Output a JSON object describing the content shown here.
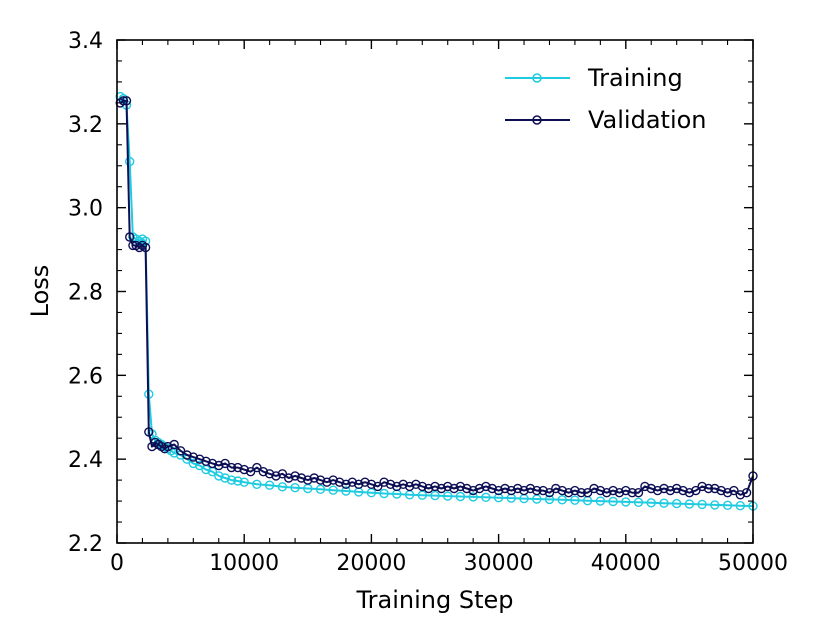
{
  "chart_data": {
    "type": "line",
    "title": "",
    "xlabel": "Training Step",
    "ylabel": "Loss",
    "xlim": [
      0,
      50000
    ],
    "ylim": [
      2.2,
      3.4
    ],
    "xticks": [
      0,
      10000,
      20000,
      30000,
      40000,
      50000
    ],
    "xtick_labels": [
      "0",
      "10000",
      "20000",
      "30000",
      "40000",
      "50000"
    ],
    "yticks": [
      2.2,
      2.4,
      2.6,
      2.8,
      3.0,
      3.2,
      3.4
    ],
    "ytick_labels": [
      "2.2",
      "2.4",
      "2.6",
      "2.8",
      "3.0",
      "3.2",
      "3.4"
    ],
    "grid": false,
    "legend_position": "top-right",
    "series": [
      {
        "name": "Training",
        "color": "#1ecbe1",
        "marker": "open-circle",
        "x": [
          250,
          500,
          750,
          1000,
          1250,
          1500,
          1750,
          2000,
          2250,
          2500,
          2750,
          3000,
          3250,
          3500,
          3750,
          4000,
          4250,
          4500,
          5000,
          5500,
          6000,
          6500,
          7000,
          7500,
          8000,
          8500,
          9000,
          9500,
          10000,
          11000,
          12000,
          13000,
          14000,
          15000,
          16000,
          17000,
          18000,
          19000,
          20000,
          21000,
          22000,
          23000,
          24000,
          25000,
          26000,
          27000,
          28000,
          29000,
          30000,
          31000,
          32000,
          33000,
          34000,
          35000,
          36000,
          37000,
          38000,
          39000,
          40000,
          41000,
          42000,
          43000,
          44000,
          45000,
          46000,
          47000,
          48000,
          49000,
          50000
        ],
        "y": [
          3.265,
          3.26,
          3.245,
          3.11,
          2.93,
          2.925,
          2.92,
          2.925,
          2.92,
          2.555,
          2.46,
          2.445,
          2.44,
          2.435,
          2.43,
          2.425,
          2.42,
          2.415,
          2.41,
          2.4,
          2.39,
          2.385,
          2.375,
          2.37,
          2.36,
          2.355,
          2.35,
          2.348,
          2.345,
          2.34,
          2.338,
          2.334,
          2.332,
          2.33,
          2.328,
          2.326,
          2.324,
          2.322,
          2.32,
          2.318,
          2.317,
          2.315,
          2.314,
          2.313,
          2.312,
          2.311,
          2.31,
          2.309,
          2.308,
          2.307,
          2.306,
          2.305,
          2.304,
          2.303,
          2.302,
          2.301,
          2.3,
          2.299,
          2.298,
          2.297,
          2.296,
          2.295,
          2.294,
          2.293,
          2.292,
          2.291,
          2.29,
          2.289,
          2.288
        ]
      },
      {
        "name": "Validation",
        "color": "#0d0f55",
        "marker": "open-circle",
        "x": [
          250,
          500,
          750,
          1000,
          1250,
          1500,
          1750,
          2000,
          2250,
          2500,
          2750,
          3000,
          3250,
          3500,
          3750,
          4000,
          4500,
          5000,
          5500,
          6000,
          6500,
          7000,
          7500,
          8000,
          8500,
          9000,
          9500,
          10000,
          10500,
          11000,
          11500,
          12000,
          12500,
          13000,
          13500,
          14000,
          14500,
          15000,
          15500,
          16000,
          16500,
          17000,
          17500,
          18000,
          18500,
          19000,
          19500,
          20000,
          20500,
          21000,
          21500,
          22000,
          22500,
          23000,
          23500,
          24000,
          24500,
          25000,
          25500,
          26000,
          26500,
          27000,
          27500,
          28000,
          28500,
          29000,
          29500,
          30000,
          30500,
          31000,
          31500,
          32000,
          32500,
          33000,
          33500,
          34000,
          34500,
          35000,
          35500,
          36000,
          36500,
          37000,
          37500,
          38000,
          38500,
          39000,
          39500,
          40000,
          40500,
          41000,
          41500,
          42000,
          42500,
          43000,
          43500,
          44000,
          44500,
          45000,
          45500,
          46000,
          46500,
          47000,
          47500,
          48000,
          48500,
          49000,
          49500,
          50000
        ],
        "y": [
          3.25,
          3.255,
          3.255,
          2.93,
          2.91,
          2.91,
          2.905,
          2.91,
          2.905,
          2.465,
          2.43,
          2.44,
          2.435,
          2.43,
          2.425,
          2.43,
          2.435,
          2.42,
          2.41,
          2.405,
          2.4,
          2.395,
          2.39,
          2.385,
          2.39,
          2.38,
          2.38,
          2.375,
          2.37,
          2.38,
          2.37,
          2.365,
          2.36,
          2.365,
          2.355,
          2.36,
          2.355,
          2.35,
          2.355,
          2.35,
          2.345,
          2.35,
          2.345,
          2.34,
          2.345,
          2.34,
          2.345,
          2.34,
          2.335,
          2.345,
          2.34,
          2.335,
          2.34,
          2.335,
          2.34,
          2.335,
          2.33,
          2.335,
          2.33,
          2.335,
          2.33,
          2.335,
          2.33,
          2.325,
          2.33,
          2.335,
          2.33,
          2.325,
          2.33,
          2.325,
          2.33,
          2.325,
          2.33,
          2.325,
          2.325,
          2.32,
          2.33,
          2.325,
          2.32,
          2.325,
          2.32,
          2.32,
          2.33,
          2.325,
          2.32,
          2.325,
          2.32,
          2.325,
          2.32,
          2.32,
          2.335,
          2.33,
          2.325,
          2.33,
          2.325,
          2.33,
          2.325,
          2.32,
          2.325,
          2.335,
          2.33,
          2.33,
          2.325,
          2.32,
          2.325,
          2.315,
          2.32,
          2.36
        ]
      }
    ]
  }
}
